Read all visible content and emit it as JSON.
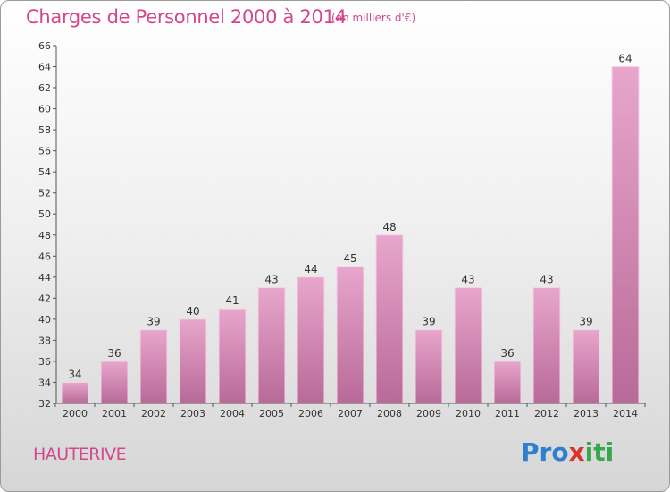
{
  "header": {
    "title": "Charges de Personnel 2000 à 2014",
    "subtitle": "(en milliers d'€)"
  },
  "footer": {
    "place": "HAUTERIVE",
    "logo": "Proxiti"
  },
  "colors": {
    "bar_top": "#e8a6cc",
    "bar_bottom": "#b86a98",
    "text_accent": "#d2478c"
  },
  "chart_data": {
    "type": "bar",
    "categories": [
      "2000",
      "2001",
      "2002",
      "2003",
      "2004",
      "2005",
      "2006",
      "2007",
      "2008",
      "2009",
      "2010",
      "2011",
      "2012",
      "2013",
      "2014"
    ],
    "values": [
      34,
      36,
      39,
      40,
      41,
      43,
      44,
      45,
      48,
      39,
      43,
      36,
      43,
      39,
      64
    ],
    "title": "Charges de Personnel 2000 à 2014",
    "subtitle": "(en milliers d'€)",
    "ylim": [
      32,
      66
    ],
    "ytick_step": 2,
    "grid": false,
    "legend": "none"
  }
}
